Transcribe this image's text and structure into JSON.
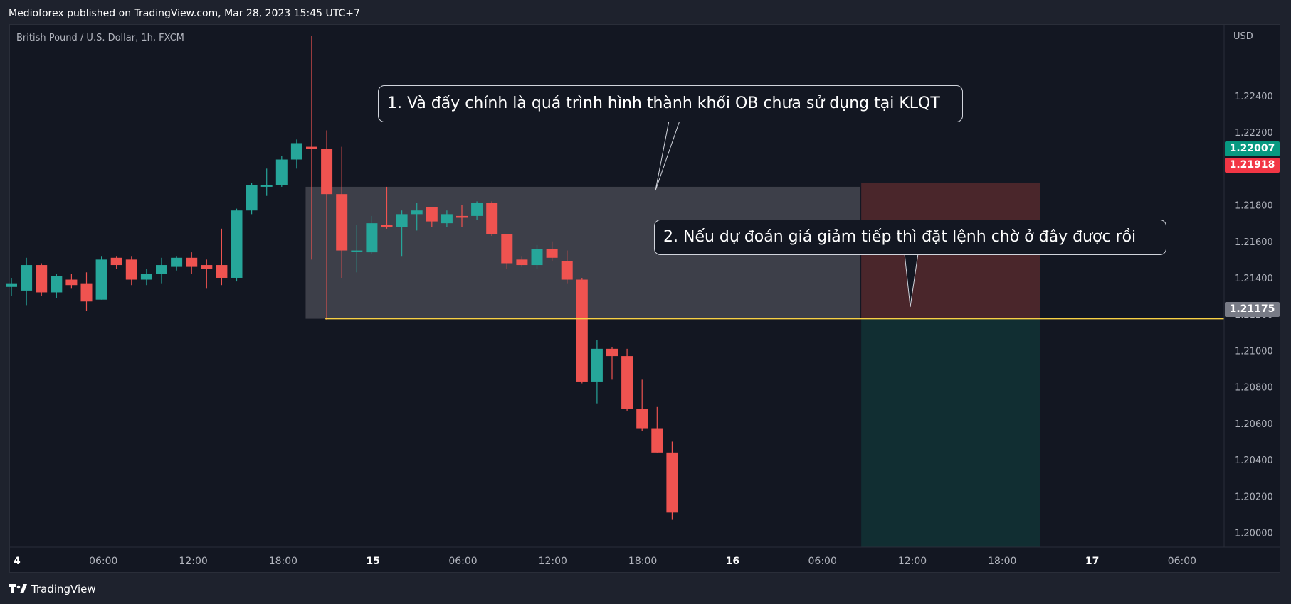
{
  "header": {
    "published_line": "Medioforex published on TradingView.com, Mar 28, 2023 15:45 UTC+7"
  },
  "chart": {
    "symbol_label": "British Pound / U.S. Dollar, 1h, FXCM",
    "currency_label": "USD",
    "colors": {
      "background": "#131722",
      "up": "#26a69a",
      "down": "#ef5350",
      "grid_border": "#2a2e39",
      "order_block_zone": "#3d3f49",
      "stop_zone": "#4a262b",
      "target_zone": "#112e32",
      "entry_line": "#f7d045"
    },
    "price_tags": {
      "last_price": {
        "value": "1.22007",
        "color": "#089981"
      },
      "prev_close": {
        "value": "1.21918",
        "color": "#f23645"
      },
      "entry": {
        "value": "1.21175",
        "color": "#787b86"
      }
    },
    "annotations": [
      "1. Và đấy chính là quá trình hình thành khối OB chưa sử dụng tại KLQT",
      "2. Nếu dự đoán giá giảm tiếp thì đặt lệnh chờ ở đây được rồi"
    ]
  },
  "chart_data": {
    "type": "candlestick",
    "title": "British Pound / U.S. Dollar, 1h, FXCM",
    "y_unit": "USD",
    "ylim": [
      1.1992,
      1.2279
    ],
    "y_ticks": [
      "1.22400",
      "1.22200",
      "1.22000",
      "1.21800",
      "1.21600",
      "1.21400",
      "1.21200",
      "1.21000",
      "1.20800",
      "1.20600",
      "1.20400",
      "1.20200",
      "1.20000"
    ],
    "x_ticks": [
      {
        "label": "4",
        "bold": true
      },
      {
        "label": "06:00",
        "bold": false
      },
      {
        "label": "12:00",
        "bold": false
      },
      {
        "label": "18:00",
        "bold": false
      },
      {
        "label": "15",
        "bold": true
      },
      {
        "label": "06:00",
        "bold": false
      },
      {
        "label": "12:00",
        "bold": false
      },
      {
        "label": "18:00",
        "bold": false
      },
      {
        "label": "16",
        "bold": true
      },
      {
        "label": "06:00",
        "bold": false
      },
      {
        "label": "12:00",
        "bold": false
      },
      {
        "label": "18:00",
        "bold": false
      },
      {
        "label": "17",
        "bold": true
      },
      {
        "label": "06:00",
        "bold": false
      }
    ],
    "candles": [
      {
        "o": 1.2135,
        "h": 1.214,
        "l": 1.213,
        "c": 1.2137
      },
      {
        "o": 1.2133,
        "h": 1.2151,
        "l": 1.2125,
        "c": 1.2147
      },
      {
        "o": 1.2147,
        "h": 1.2148,
        "l": 1.213,
        "c": 1.2132
      },
      {
        "o": 1.2132,
        "h": 1.2142,
        "l": 1.2129,
        "c": 1.2141
      },
      {
        "o": 1.2139,
        "h": 1.2142,
        "l": 1.2134,
        "c": 1.2136
      },
      {
        "o": 1.2137,
        "h": 1.2143,
        "l": 1.2122,
        "c": 1.2127
      },
      {
        "o": 1.2128,
        "h": 1.2152,
        "l": 1.2128,
        "c": 1.215
      },
      {
        "o": 1.2151,
        "h": 1.2152,
        "l": 1.2145,
        "c": 1.2147
      },
      {
        "o": 1.215,
        "h": 1.2152,
        "l": 1.2136,
        "c": 1.2139
      },
      {
        "o": 1.2139,
        "h": 1.2145,
        "l": 1.2136,
        "c": 1.2142
      },
      {
        "o": 1.2142,
        "h": 1.2151,
        "l": 1.2137,
        "c": 1.2147
      },
      {
        "o": 1.2146,
        "h": 1.2152,
        "l": 1.2144,
        "c": 1.2151
      },
      {
        "o": 1.2151,
        "h": 1.2154,
        "l": 1.2142,
        "c": 1.2146
      },
      {
        "o": 1.2147,
        "h": 1.215,
        "l": 1.2134,
        "c": 1.2145
      },
      {
        "o": 1.2147,
        "h": 1.2167,
        "l": 1.2136,
        "c": 1.214
      },
      {
        "o": 1.214,
        "h": 1.2178,
        "l": 1.2138,
        "c": 1.2177
      },
      {
        "o": 1.2177,
        "h": 1.2192,
        "l": 1.2175,
        "c": 1.2191
      },
      {
        "o": 1.219,
        "h": 1.22,
        "l": 1.2185,
        "c": 1.2191
      },
      {
        "o": 1.2191,
        "h": 1.2207,
        "l": 1.219,
        "c": 1.2205
      },
      {
        "o": 1.2205,
        "h": 1.2216,
        "l": 1.22,
        "c": 1.2214
      },
      {
        "o": 1.2212,
        "h": 1.2273,
        "l": 1.215,
        "c": 1.2211
      },
      {
        "o": 1.2211,
        "h": 1.2221,
        "l": 1.2117,
        "c": 1.2186
      },
      {
        "o": 1.2186,
        "h": 1.2212,
        "l": 1.214,
        "c": 1.2155
      },
      {
        "o": 1.2155,
        "h": 1.2169,
        "l": 1.2143,
        "c": 1.2155
      },
      {
        "o": 1.2154,
        "h": 1.2174,
        "l": 1.2153,
        "c": 1.217
      },
      {
        "o": 1.2169,
        "h": 1.219,
        "l": 1.2167,
        "c": 1.2168
      },
      {
        "o": 1.2168,
        "h": 1.2177,
        "l": 1.2152,
        "c": 1.2175
      },
      {
        "o": 1.2175,
        "h": 1.2181,
        "l": 1.2166,
        "c": 1.2177
      },
      {
        "o": 1.2179,
        "h": 1.2179,
        "l": 1.2168,
        "c": 1.2171
      },
      {
        "o": 1.217,
        "h": 1.2177,
        "l": 1.2168,
        "c": 1.2175
      },
      {
        "o": 1.2174,
        "h": 1.218,
        "l": 1.2168,
        "c": 1.2173
      },
      {
        "o": 1.2174,
        "h": 1.2182,
        "l": 1.2172,
        "c": 1.2181
      },
      {
        "o": 1.2181,
        "h": 1.2182,
        "l": 1.2163,
        "c": 1.2164
      },
      {
        "o": 1.2164,
        "h": 1.2164,
        "l": 1.2145,
        "c": 1.2148
      },
      {
        "o": 1.215,
        "h": 1.2152,
        "l": 1.2146,
        "c": 1.2147
      },
      {
        "o": 1.2147,
        "h": 1.2158,
        "l": 1.2145,
        "c": 1.2156
      },
      {
        "o": 1.2156,
        "h": 1.216,
        "l": 1.2149,
        "c": 1.2151
      },
      {
        "o": 1.2149,
        "h": 1.2155,
        "l": 1.2137,
        "c": 1.2139
      },
      {
        "o": 1.2139,
        "h": 1.214,
        "l": 1.2082,
        "c": 1.2083
      },
      {
        "o": 1.2083,
        "h": 1.2106,
        "l": 1.2071,
        "c": 1.2101
      },
      {
        "o": 1.2101,
        "h": 1.2102,
        "l": 1.2084,
        "c": 1.2097
      },
      {
        "o": 1.2097,
        "h": 1.2101,
        "l": 1.2067,
        "c": 1.2068
      },
      {
        "o": 1.2068,
        "h": 1.2084,
        "l": 1.2056,
        "c": 1.2057
      },
      {
        "o": 1.2057,
        "h": 1.2069,
        "l": 1.2044,
        "c": 1.2044
      },
      {
        "o": 1.2044,
        "h": 1.205,
        "l": 1.2007,
        "c": 1.2011
      }
    ],
    "zones": [
      {
        "name": "order-block",
        "from_bar": 20,
        "to_bar": 57,
        "top": 1.219,
        "bottom": 1.21175
      },
      {
        "name": "stop-loss",
        "from_bar": 57,
        "to_bar": 69,
        "top": 1.2192,
        "bottom": 1.21175
      },
      {
        "name": "take-profit",
        "from_bar": 57,
        "to_bar": 69,
        "top": 1.21175,
        "bottom": 1.1992
      }
    ],
    "entry_line": {
      "price": 1.21175,
      "from_bar": 21,
      "to_bar": 80
    }
  }
}
